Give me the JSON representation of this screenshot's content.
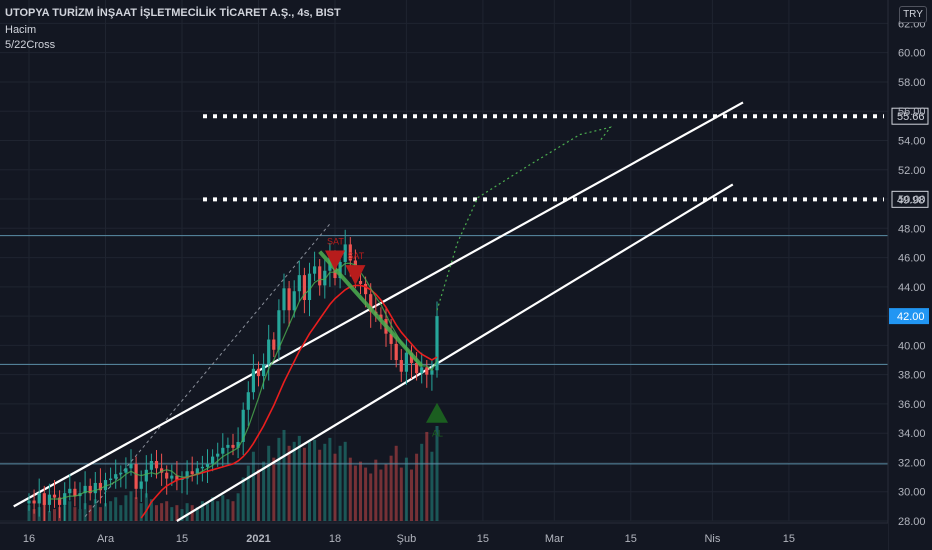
{
  "header": {
    "title": "UTOPYA TURİZM İNŞAAT İŞLETMECİLİK TİCARET A.Ş., 4s, BIST",
    "volume_label": "Hacim",
    "indicator_label": "5/22Cross",
    "currency": "TRY"
  },
  "colors": {
    "background": "#131722",
    "grid": "#1f2430",
    "up": "#26a69a",
    "down": "#ef5350",
    "ma_red": "#e91e1e",
    "ma_green": "#4caf50",
    "trend_line": "#ffffff",
    "dotted_level": "#ffffff",
    "price_tag": "#2196f3",
    "h_line": "#5b8fa8"
  },
  "chart_data": {
    "type": "candlestick",
    "ylim": [
      28,
      63.6
    ],
    "y_ticks": [
      28,
      30,
      32,
      34,
      36,
      38,
      40,
      42,
      44,
      46,
      48,
      50,
      52,
      54,
      56,
      58,
      60,
      62
    ],
    "y_tick_labels": [
      "28.00",
      "30.00",
      "32.00",
      "34.00",
      "36.00",
      "38.00",
      "40.00",
      "42.00",
      "44.00",
      "46.00",
      "48.00",
      "50.00",
      "52.00",
      "54.00",
      "56.00",
      "58.00",
      "60.00",
      "62.00"
    ],
    "x_ticks": [
      {
        "label": "16",
        "x": 0
      },
      {
        "label": "Ara",
        "x": 15
      },
      {
        "label": "15",
        "x": 30
      },
      {
        "label": "2021",
        "x": 45
      },
      {
        "label": "18",
        "x": 60
      },
      {
        "label": "Şub",
        "x": 74
      },
      {
        "label": "15",
        "x": 89
      },
      {
        "label": "Mar",
        "x": 103
      },
      {
        "label": "15",
        "x": 118
      },
      {
        "label": "Nis",
        "x": 134
      },
      {
        "label": "15",
        "x": 149
      }
    ],
    "last_price": "42.00",
    "levels": [
      {
        "label": "55.66",
        "value": 55.66,
        "style": "dotted"
      },
      {
        "label": "49.98",
        "value": 49.98,
        "style": "dotted"
      }
    ],
    "h_lines": [
      47.5,
      38.7,
      31.9
    ],
    "trend_lines": [
      {
        "x1": -3,
        "y1": 29.0,
        "x2": 140,
        "y2": 56.6
      },
      {
        "x1": 29,
        "y1": 28.0,
        "x2": 138,
        "y2": 51.0
      }
    ],
    "close": [
      29.4,
      29.2,
      29.9,
      29.1,
      29.8,
      29.6,
      29.1,
      29.9,
      30.2,
      29.7,
      29.9,
      30.4,
      29.9,
      30.6,
      30.1,
      30.8,
      30.9,
      31.2,
      31.3,
      31.6,
      31.9,
      30.2,
      30.7,
      31.5,
      32.1,
      31.6,
      31.3,
      30.9,
      31.1,
      30.8,
      30.9,
      31.4,
      31.2,
      31.6,
      31.7,
      31.9,
      32.4,
      32.6,
      33.0,
      33.2,
      33.0,
      33.4,
      35.6,
      36.8,
      38.4,
      37.9,
      38.7,
      40.4,
      39.7,
      42.4,
      43.9,
      42.4,
      43.7,
      44.8,
      43.1,
      44.9,
      45.4,
      44.1,
      45.1,
      46.0,
      44.6,
      45.7,
      46.9,
      45.8,
      44.4,
      44.2,
      43.5,
      42.3,
      42.1,
      41.8,
      40.8,
      40.1,
      39.0,
      38.2,
      39.5,
      38.8,
      38.1,
      38.5,
      38.0,
      38.3,
      42.0
    ],
    "ma5": [
      null,
      null,
      null,
      null,
      29.5,
      29.5,
      29.5,
      29.6,
      29.7,
      29.7,
      29.8,
      30.0,
      30.0,
      30.1,
      30.2,
      30.4,
      30.5,
      30.7,
      30.9,
      31.2,
      31.4,
      31.2,
      31.1,
      31.2,
      31.3,
      31.2,
      31.4,
      31.5,
      31.4,
      31.1,
      31.0,
      31.0,
      31.1,
      31.2,
      31.4,
      31.6,
      31.8,
      32.1,
      32.4,
      32.6,
      32.8,
      33.0,
      33.6,
      34.4,
      35.4,
      36.4,
      37.5,
      38.4,
      39.0,
      39.8,
      40.6,
      41.4,
      42.2,
      43.0,
      43.5,
      43.8,
      44.3,
      44.5,
      44.5,
      45.0,
      45.0,
      45.3,
      45.6,
      45.6,
      45.5,
      45.0,
      44.5,
      43.9,
      43.3,
      42.8,
      42.1,
      41.4,
      40.8,
      40.2,
      39.8,
      39.3,
      38.9,
      38.6,
      38.6,
      38.3,
      39.0
    ],
    "ma22": [
      null,
      null,
      null,
      null,
      null,
      null,
      null,
      null,
      null,
      null,
      null,
      null,
      null,
      null,
      null,
      null,
      null,
      null,
      null,
      null,
      null,
      null,
      28.2,
      28.7,
      29.3,
      29.7,
      30.1,
      30.4,
      30.6,
      30.8,
      30.9,
      31.0,
      31.1,
      31.2,
      31.3,
      31.4,
      31.5,
      31.6,
      31.7,
      31.8,
      31.9,
      32.1,
      32.4,
      32.8,
      33.3,
      33.9,
      34.5,
      35.2,
      35.9,
      36.7,
      37.5,
      38.2,
      38.9,
      39.6,
      40.2,
      40.8,
      41.3,
      41.8,
      42.3,
      42.8,
      43.2,
      43.5,
      43.8,
      44.0,
      44.1,
      44.1,
      44.0,
      43.8,
      43.5,
      43.1,
      42.6,
      42.0,
      41.4,
      40.9,
      40.5,
      40.1,
      39.7,
      39.4,
      39.2,
      39.0,
      39.2
    ],
    "volume": [
      0.8,
      0.6,
      0.7,
      0.9,
      0.5,
      0.6,
      0.7,
      0.8,
      1.0,
      0.7,
      0.6,
      0.9,
      0.8,
      1.1,
      0.7,
      0.9,
      1.0,
      1.2,
      0.8,
      1.3,
      1.5,
      1.2,
      0.9,
      1.4,
      1.1,
      0.8,
      0.9,
      1.0,
      0.7,
      0.8,
      0.6,
      0.9,
      0.8,
      0.7,
      1.0,
      0.9,
      1.2,
      1.0,
      1.3,
      1.1,
      1.0,
      1.4,
      2.2,
      2.8,
      3.5,
      2.6,
      3.0,
      3.8,
      3.2,
      4.2,
      4.6,
      3.8,
      4.0,
      4.3,
      3.7,
      4.0,
      4.1,
      3.6,
      3.9,
      4.2,
      3.4,
      3.8,
      4.0,
      3.2,
      2.8,
      3.0,
      2.7,
      2.4,
      3.1,
      2.6,
      2.9,
      3.3,
      3.8,
      2.7,
      3.2,
      2.6,
      3.4,
      3.9,
      4.5,
      3.5,
      4.8
    ],
    "sell_signals": [
      {
        "label": "SAT",
        "x": 60,
        "value": 45.8
      },
      {
        "label": "SAT",
        "x": 64,
        "value": 44.8
      }
    ],
    "buy_signals": [
      {
        "label": "AL",
        "x": 80,
        "value": 35.4
      }
    ],
    "projection": [
      {
        "x": 80,
        "v": 42.4
      },
      {
        "x": 84,
        "v": 47.0
      },
      {
        "x": 88,
        "v": 50.1
      },
      {
        "x": 98,
        "v": 52.3
      },
      {
        "x": 108,
        "v": 54.4
      },
      {
        "x": 114,
        "v": 54.9
      },
      {
        "x": 112,
        "v": 54.0
      }
    ],
    "dashed_line": {
      "x1": 11,
      "y1": 28.3,
      "x2": 59,
      "y2": 48.3
    },
    "green_line": {
      "x1": 57,
      "y1": 46.4,
      "x2": 77,
      "y2": 38.6
    }
  }
}
